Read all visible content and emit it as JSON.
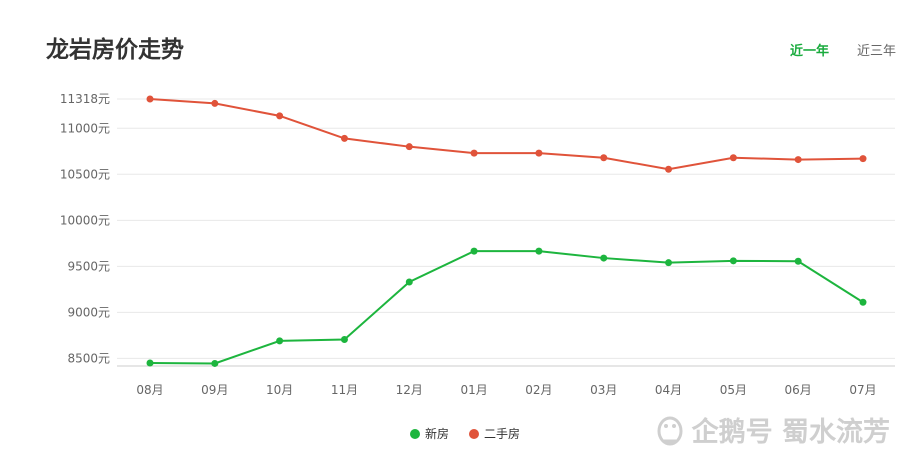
{
  "header": {
    "title": "龙岩房价走势"
  },
  "tabs": [
    {
      "label": "近一年",
      "active": true
    },
    {
      "label": "近三年",
      "active": false
    }
  ],
  "watermark": {
    "text": "企鹅号 蜀水流芳"
  },
  "colors": {
    "new": "#1db53e",
    "second": "#e0533a",
    "accent": "#1aab3e"
  },
  "chart_data": {
    "type": "line",
    "categories": [
      "08月",
      "09月",
      "10月",
      "11月",
      "12月",
      "01月",
      "02月",
      "03月",
      "04月",
      "05月",
      "06月",
      "07月"
    ],
    "series": [
      {
        "name": "新房",
        "color": "#1db53e",
        "values": [
          8450,
          8445,
          8690,
          8705,
          9330,
          9665,
          9665,
          9590,
          9540,
          9560,
          9555,
          9110
        ]
      },
      {
        "name": "二手房",
        "color": "#e0533a",
        "values": [
          11318,
          11270,
          11135,
          10890,
          10800,
          10730,
          10730,
          10680,
          10555,
          10680,
          10660,
          10670
        ]
      }
    ],
    "y_ticks": [
      {
        "value": 8500,
        "label": "8500元"
      },
      {
        "value": 9000,
        "label": "9000元"
      },
      {
        "value": 9500,
        "label": "9500元"
      },
      {
        "value": 10000,
        "label": "10000元"
      },
      {
        "value": 10500,
        "label": "10500元"
      },
      {
        "value": 11000,
        "label": "11000元"
      },
      {
        "value": 11318,
        "label": "11318元"
      }
    ],
    "ylim": [
      8450,
      11318
    ],
    "grid": true,
    "legend_position": "bottom-center"
  }
}
